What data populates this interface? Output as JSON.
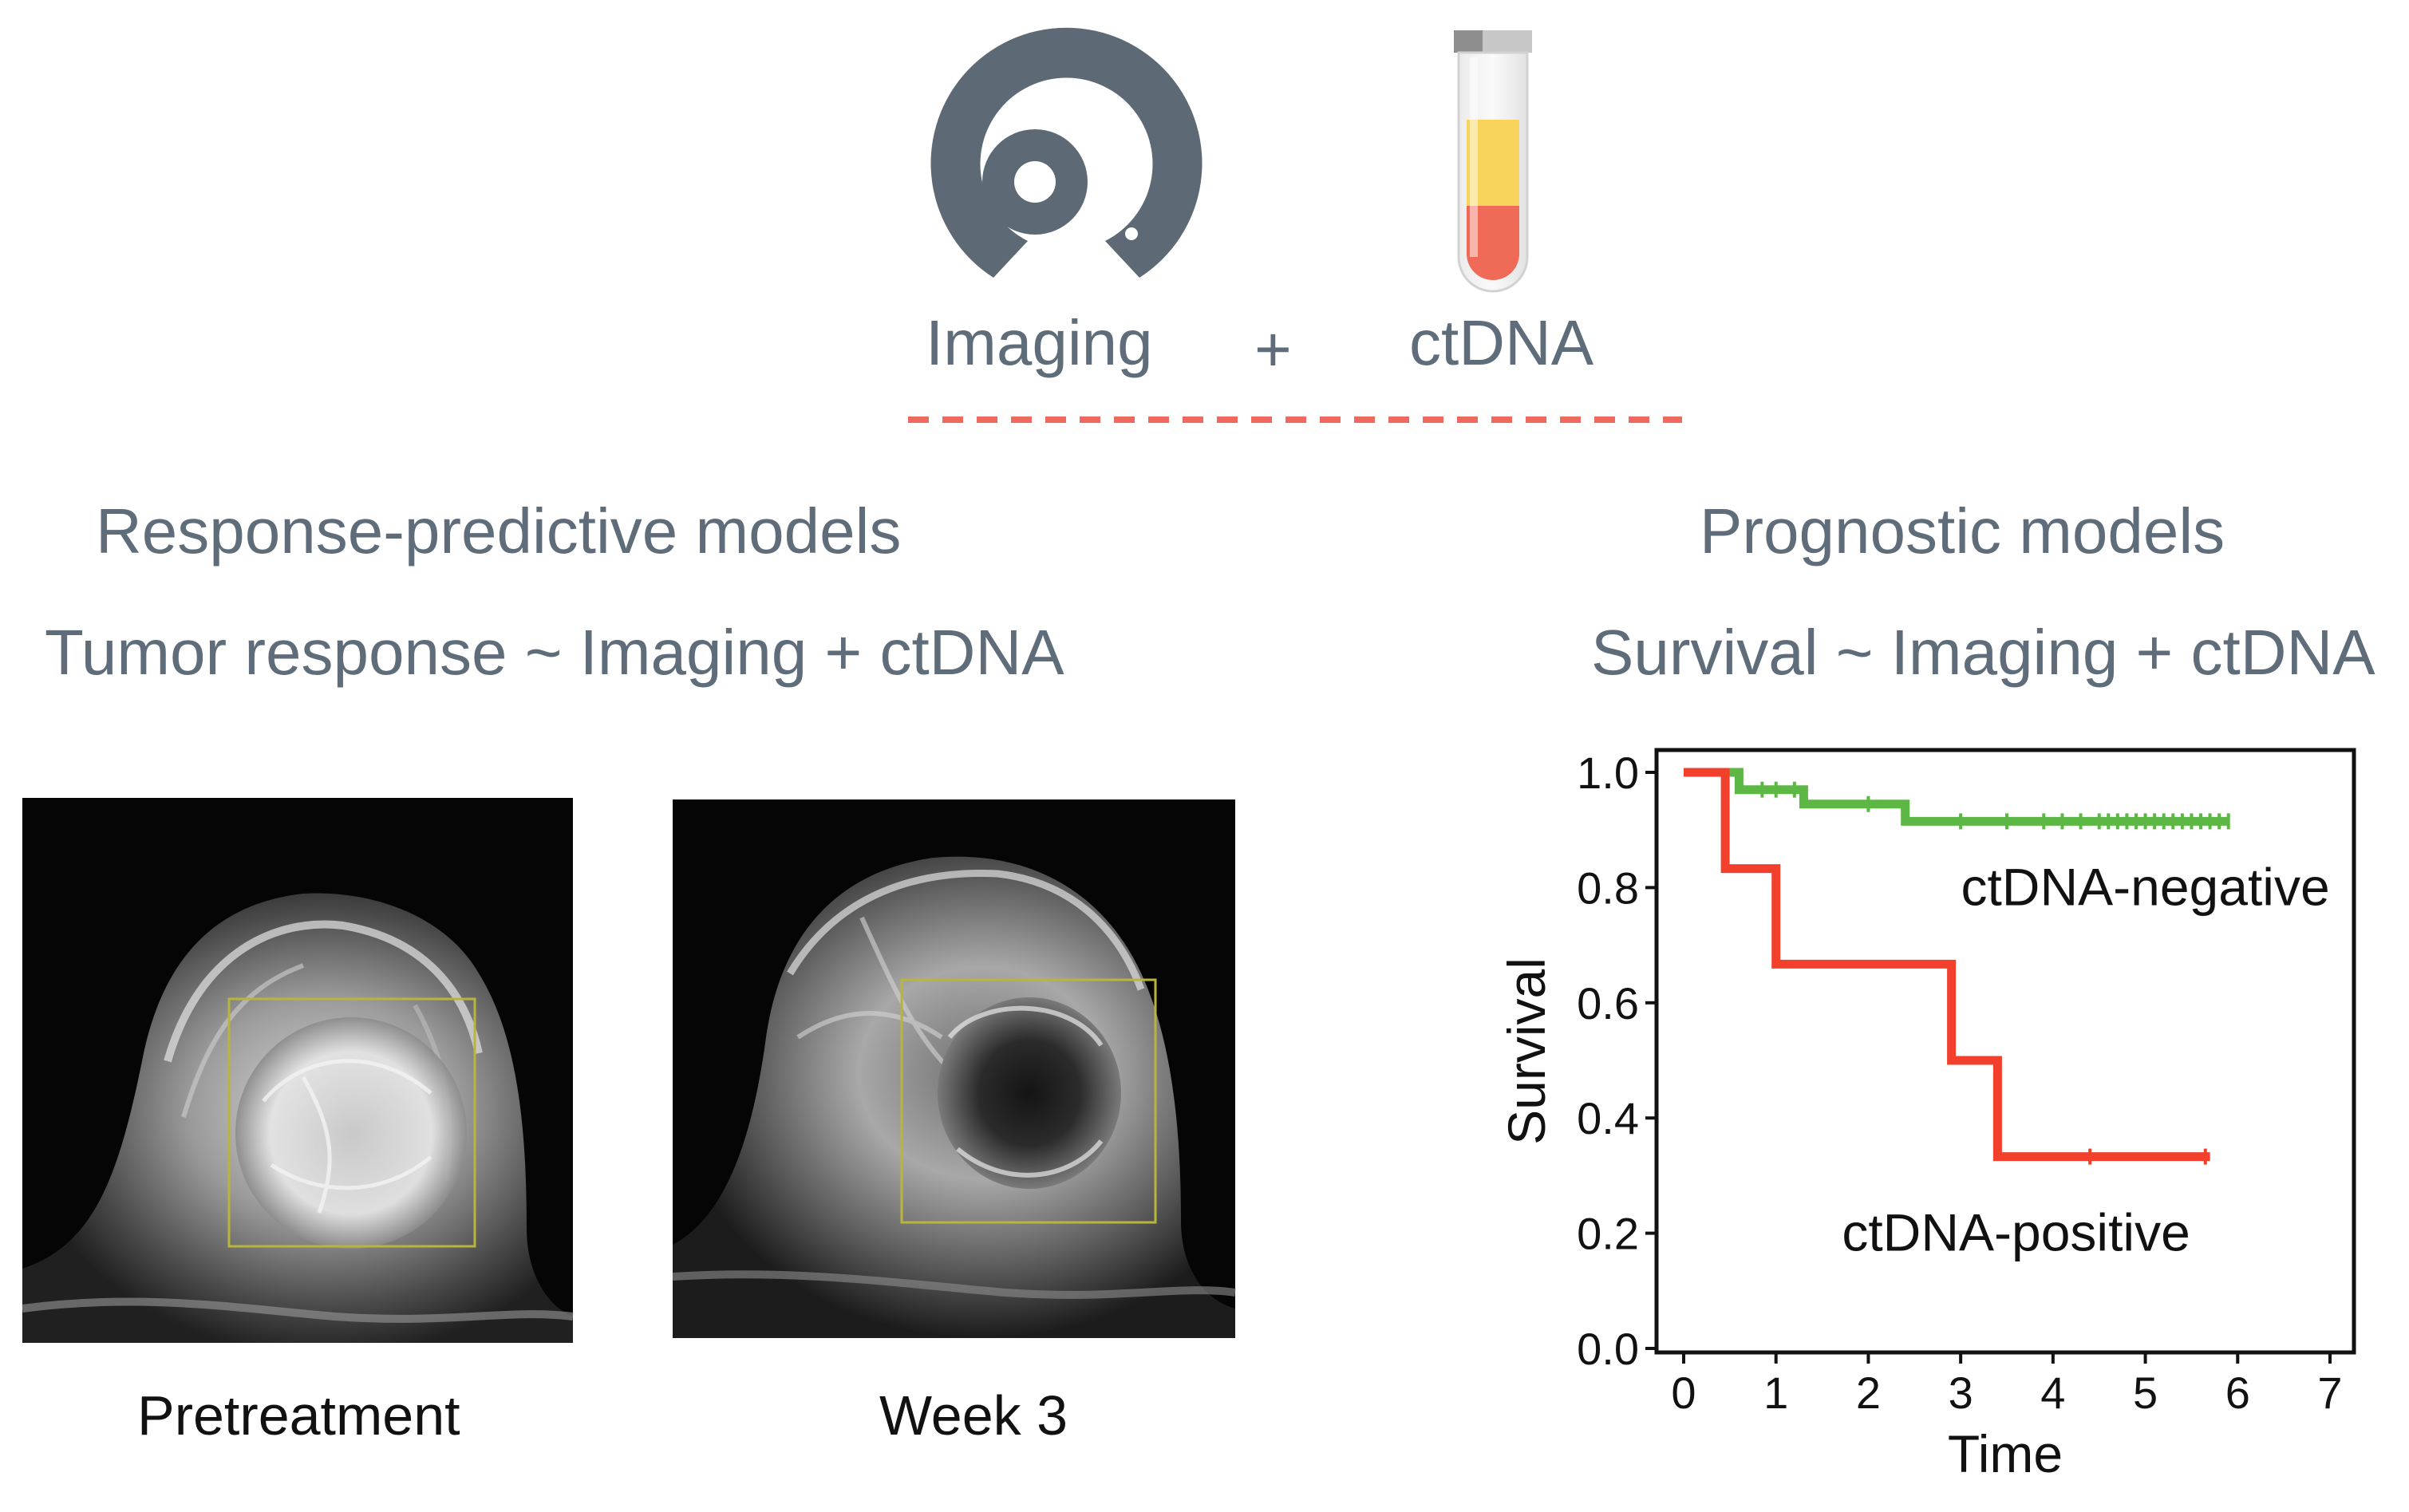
{
  "header": {
    "imaging_label": "Imaging",
    "plus_label": "+",
    "ctdna_label": "ctDNA"
  },
  "left_panel": {
    "title": "Response-predictive models",
    "formula": "Tumor response ~ Imaging + ctDNA",
    "images": [
      {
        "caption": "Pretreatment"
      },
      {
        "caption": "Week 3"
      }
    ]
  },
  "right_panel": {
    "title": "Prognostic models",
    "formula": "Survival ~ Imaging + ctDNA"
  },
  "colors": {
    "text_grey": "#5f6c7a",
    "icon_grey": "#5d6a76",
    "dash_red": "#f0695f",
    "negative_green": "#5db745",
    "positive_red": "#f2402c",
    "tube_yellow": "#f8d45c",
    "tube_red": "#ef6a57",
    "roi_box": "#b9b53c"
  },
  "chart_data": {
    "type": "line",
    "title": "",
    "xlabel": "Time",
    "ylabel": "Survival",
    "xlim": [
      0,
      7
    ],
    "ylim": [
      0,
      1
    ],
    "xticks": [
      "0",
      "1",
      "2",
      "3",
      "4",
      "5",
      "6",
      "7"
    ],
    "yticks": [
      "0.0",
      "0.2",
      "0.4",
      "0.6",
      "0.8",
      "1.0"
    ],
    "series": [
      {
        "name": "ctDNA-negative",
        "color": "#5db745",
        "steps": [
          [
            0,
            1.0
          ],
          [
            0.6,
            1.0
          ],
          [
            0.6,
            0.97
          ],
          [
            1.3,
            0.97
          ],
          [
            1.3,
            0.945
          ],
          [
            2.4,
            0.945
          ],
          [
            2.4,
            0.915
          ],
          [
            5.9,
            0.915
          ]
        ],
        "censor": [
          0.85,
          1.0,
          1.2,
          2.0,
          3.0,
          3.5,
          3.9,
          4.1,
          4.3,
          4.5,
          4.6,
          4.7,
          4.8,
          4.9,
          5.0,
          5.1,
          5.2,
          5.3,
          5.4,
          5.5,
          5.6,
          5.7,
          5.8,
          5.9
        ],
        "censor_y": 0.915,
        "censor_early_y": [
          0.97,
          0.97,
          0.97,
          0.945,
          0.915
        ],
        "label_x": 5.0,
        "label_y": 0.8
      },
      {
        "name": "ctDNA-positive",
        "color": "#f2402c",
        "steps": [
          [
            0,
            1.0
          ],
          [
            0.45,
            1.0
          ],
          [
            0.45,
            0.833
          ],
          [
            1.0,
            0.833
          ],
          [
            1.0,
            0.667
          ],
          [
            2.9,
            0.667
          ],
          [
            2.9,
            0.5
          ],
          [
            3.4,
            0.5
          ],
          [
            3.4,
            0.333
          ],
          [
            5.7,
            0.333
          ]
        ],
        "censor": [
          4.4,
          5.65
        ],
        "censor_y": 0.333,
        "label_x": 3.6,
        "label_y": 0.2
      }
    ]
  }
}
